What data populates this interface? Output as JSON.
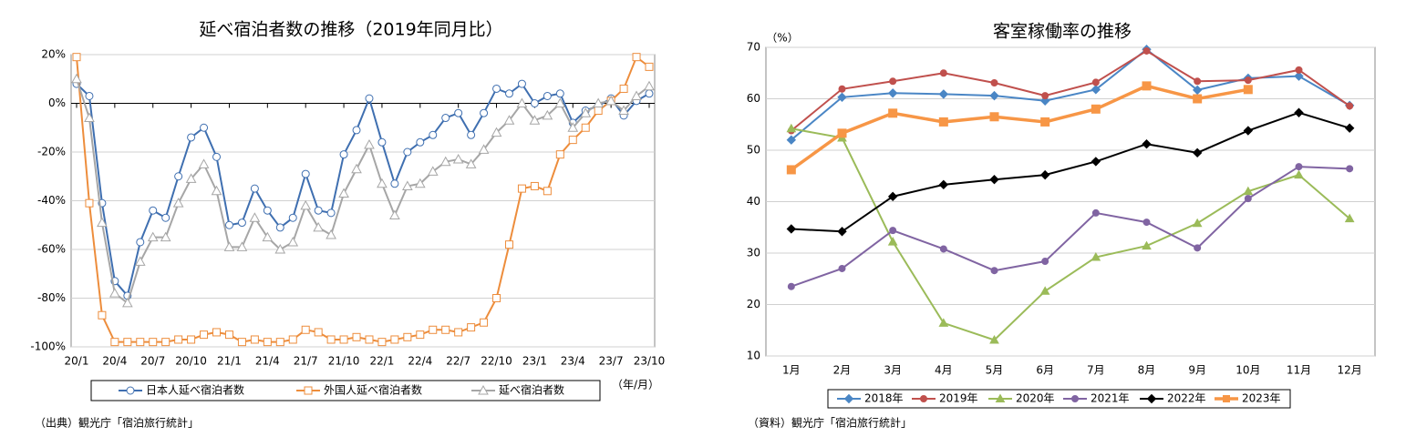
{
  "chart_data": [
    {
      "type": "line",
      "title": "延べ宿泊者数の推移（2019年同月比）",
      "x_label": "（年/月）",
      "source": "（出典）観光庁「宿泊旅行統計」",
      "categories": [
        "20/1",
        null,
        null,
        "20/4",
        null,
        null,
        "20/7",
        null,
        null,
        "20/10",
        null,
        null,
        "21/1",
        null,
        null,
        "21/4",
        null,
        null,
        "21/7",
        null,
        null,
        "21/10",
        null,
        null,
        "22/1",
        null,
        null,
        "22/4",
        null,
        null,
        "22/7",
        null,
        null,
        "22/10",
        null,
        null,
        "23/1",
        null,
        null,
        "23/4",
        null,
        null,
        "23/7",
        null,
        null,
        "23/10"
      ],
      "ylim": [
        -100,
        20
      ],
      "yticks": [
        {
          "value": -100,
          "label": "-100%"
        },
        {
          "value": -80,
          "label": "-80%"
        },
        {
          "value": -60,
          "label": "-60%"
        },
        {
          "value": -40,
          "label": "-40%"
        },
        {
          "value": -20,
          "label": "-20%"
        },
        {
          "value": 0,
          "label": "0%"
        },
        {
          "value": 20,
          "label": "20%"
        }
      ],
      "grid": true,
      "marker_fill": "#ffffff",
      "series": [
        {
          "name": "日本人延べ宿泊者数",
          "color": "#3f6fb0",
          "marker": "circle",
          "values": [
            8,
            3,
            -41,
            -73,
            -79,
            -57,
            -44,
            -47,
            -30,
            -14,
            -10,
            -22,
            -50,
            -49,
            -35,
            -44,
            -51,
            -47,
            -29,
            -44,
            -45,
            -21,
            -11,
            2,
            -16,
            -33,
            -20,
            -16,
            -13,
            -6,
            -4,
            -13,
            -4,
            6,
            4,
            8,
            0,
            3,
            4,
            -8,
            -3,
            -1,
            2,
            -5,
            1,
            4
          ]
        },
        {
          "name": "外国人延べ宿泊者数",
          "color": "#ed8d3c",
          "marker": "square",
          "values": [
            19,
            -41,
            -87,
            -98,
            -98,
            -98,
            -98,
            -98,
            -97,
            -97,
            -95,
            -94,
            -95,
            -98,
            -97,
            -98,
            -98,
            -97,
            -93,
            -94,
            -97,
            -97,
            -96,
            -97,
            -98,
            -97,
            -96,
            -95,
            -93,
            -93,
            -94,
            -92,
            -90,
            -80,
            -58,
            -35,
            -34,
            -36,
            -21,
            -15,
            -10,
            -3,
            1,
            6,
            19,
            15
          ]
        },
        {
          "name": "延べ宿泊者数",
          "color": "#a6a6a6",
          "marker": "triangle",
          "values": [
            10,
            -6,
            -49,
            -78,
            -82,
            -65,
            -55,
            -55,
            -41,
            -31,
            -25,
            -36,
            -59,
            -59,
            -47,
            -55,
            -60,
            -57,
            -42,
            -51,
            -54,
            -37,
            -27,
            -17,
            -33,
            -46,
            -34,
            -33,
            -28,
            -24,
            -23,
            -25,
            -19,
            -12,
            -7,
            0,
            -7,
            -5,
            0,
            -10,
            -4,
            0,
            1,
            -3,
            3,
            7
          ]
        }
      ]
    },
    {
      "type": "line",
      "title": "客室稼働率の推移",
      "y_label": "（%）",
      "source": "（資料）観光庁「宿泊旅行統計」",
      "categories": [
        "1月",
        "2月",
        "3月",
        "4月",
        "5月",
        "6月",
        "7月",
        "8月",
        "9月",
        "10月",
        "11月",
        "12月"
      ],
      "ylim": [
        10,
        70
      ],
      "yticks": [
        10,
        20,
        30,
        40,
        50,
        60,
        70
      ],
      "grid": true,
      "series": [
        {
          "name": "2018年",
          "color": "#4a86c5",
          "marker": "diamond",
          "values": [
            52,
            60.3,
            61.1,
            60.9,
            60.6,
            59.6,
            61.8,
            69.6,
            61.7,
            64.0,
            64.4,
            58.7
          ]
        },
        {
          "name": "2019年",
          "color": "#c0504d",
          "marker": "circle",
          "values": [
            53.8,
            61.9,
            63.4,
            65.0,
            63.1,
            60.6,
            63.2,
            69.3,
            63.4,
            63.6,
            65.6,
            58.6
          ]
        },
        {
          "name": "2020年",
          "color": "#9bbb59",
          "marker": "triangle",
          "values": [
            54.2,
            52.4,
            32.2,
            16.4,
            13.1,
            22.6,
            29.2,
            31.4,
            35.8,
            42.0,
            45.2,
            36.7
          ]
        },
        {
          "name": "2021年",
          "color": "#8064a2",
          "marker": "circle",
          "values": [
            23.5,
            27.0,
            34.4,
            30.8,
            26.6,
            28.4,
            37.8,
            36.0,
            31.0,
            40.6,
            46.8,
            46.4
          ]
        },
        {
          "name": "2022年",
          "color": "#000000",
          "marker": "diamond",
          "values": [
            34.7,
            34.2,
            41.0,
            43.3,
            44.3,
            45.2,
            47.8,
            51.2,
            49.5,
            53.8,
            57.3,
            54.3
          ]
        },
        {
          "name": "2023年",
          "color": "#f79646",
          "marker": "square",
          "values": [
            46.2,
            53.3,
            57.2,
            55.5,
            56.5,
            55.5,
            58.0,
            62.5,
            60.0,
            61.8,
            null,
            null
          ]
        }
      ]
    }
  ]
}
